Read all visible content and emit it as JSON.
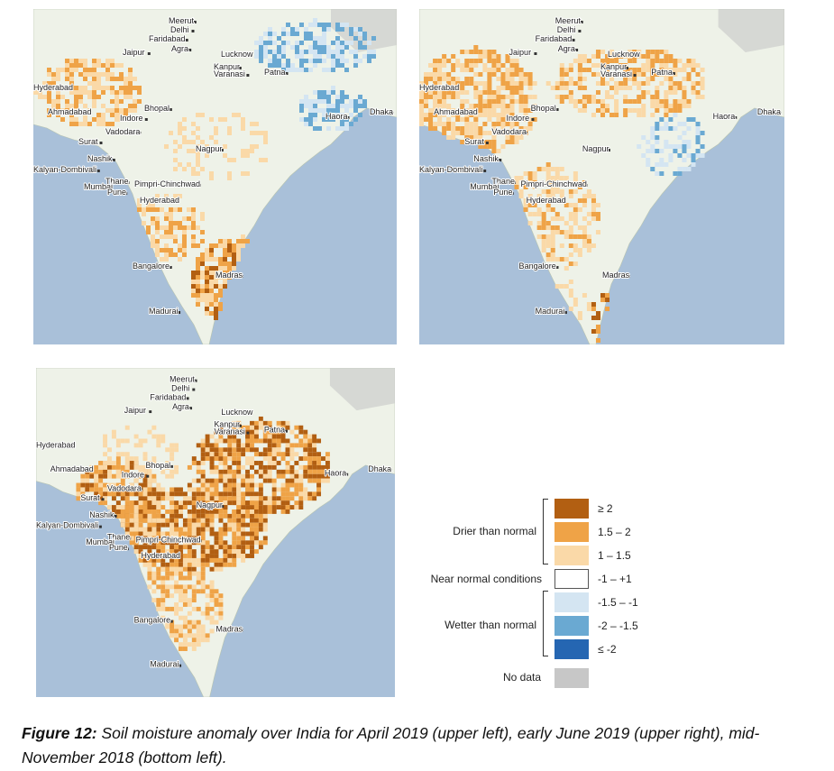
{
  "colors": {
    "sea": "#a9c0d9",
    "land": "#eef2e8",
    "dry_strong": "#b25f12",
    "dry_mid": "#efa347",
    "dry_light": "#fad9a8",
    "normal": "#ffffff",
    "wet_light": "#d4e5f2",
    "wet_mid": "#6aa9d2",
    "wet_strong": "#2566b2",
    "no_data": "#c7c7c7"
  },
  "map_labels": [
    "Meerut",
    "Delhi",
    "Faridabad",
    "Agra",
    "Jaipur",
    "Lucknow",
    "Kanpur",
    "Varanasi",
    "Patna",
    "Hyderabad",
    "Ahmadabad",
    "Bhopal",
    "Indore",
    "Vadodara",
    "Surat",
    "Haora",
    "Dhaka",
    "Nagpur",
    "Nashik",
    "Kalyan-Dombivali",
    "Thane",
    "Mumbai",
    "Pimpri-Chinchwad",
    "Pune",
    "Hyderabad",
    "Bangalore",
    "Madras",
    "Madurai"
  ],
  "legend": {
    "groups": {
      "drier": "Drier than normal",
      "near": "Near normal conditions",
      "wetter": "Wetter than normal",
      "nodata": "No data"
    },
    "classes": [
      {
        "label": "≥ 2",
        "color": "#b25f12"
      },
      {
        "label": "1.5 – 2",
        "color": "#efa347"
      },
      {
        "label": "1 – 1.5",
        "color": "#fad9a8"
      },
      {
        "label": "-1 – +1",
        "color": "#ffffff"
      },
      {
        "label": "-1.5 – -1",
        "color": "#d4e5f2"
      },
      {
        "label": "-2 – -1.5",
        "color": "#6aa9d2"
      },
      {
        "label": "≤ -2",
        "color": "#2566b2"
      },
      {
        "label": "",
        "color": "#c7c7c7"
      }
    ]
  },
  "caption": {
    "lead": "Figure 12:",
    "text": " Soil moisture anomaly over India for April 2019 (upper left), early June 2019 (upper right), mid-November 2018 (bottom left)."
  }
}
